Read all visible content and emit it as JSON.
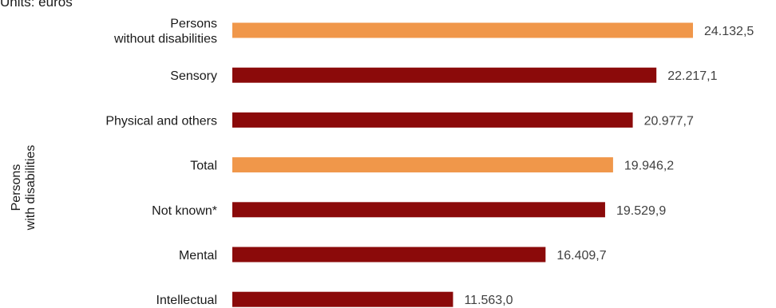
{
  "units_label": "Units: euros",
  "group_label": [
    "Persons",
    "with disabilities"
  ],
  "colors": {
    "highlight": "#F0974A",
    "default": "#8B0A0A"
  },
  "chart_data": {
    "type": "bar",
    "orientation": "horizontal",
    "categories": [
      [
        "Persons",
        "without disabilities"
      ],
      [
        "Sensory"
      ],
      [
        "Physical and others"
      ],
      [
        "Total"
      ],
      [
        "Not known*"
      ],
      [
        "Mental"
      ],
      [
        "Intellectual"
      ]
    ],
    "values": [
      24132.5,
      22217.1,
      20977.7,
      19946.2,
      19529.9,
      16409.7,
      11563.0
    ],
    "value_labels": [
      "24.132,5",
      "22.217,1",
      "20.977,7",
      "19.946,2",
      "19.529,9",
      "16.409,7",
      "11.563,0"
    ],
    "highlight": [
      true,
      false,
      false,
      true,
      false,
      false,
      false
    ],
    "xlim": [
      0,
      24132.5
    ]
  }
}
